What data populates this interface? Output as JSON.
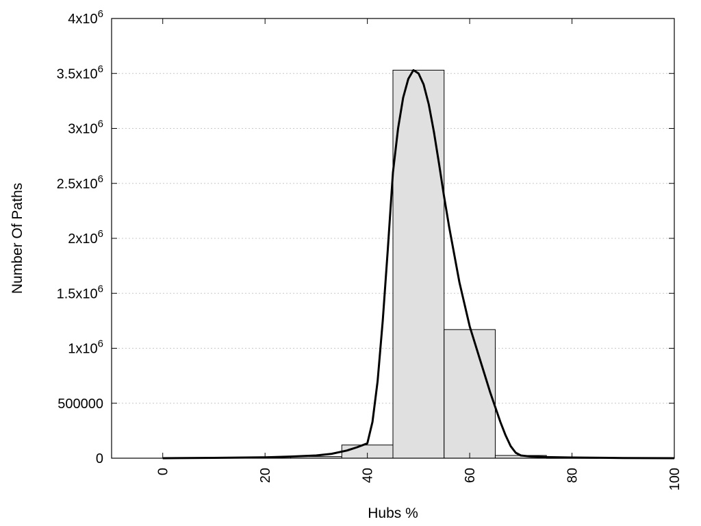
{
  "chart_data": {
    "type": "bar",
    "title": "",
    "xlabel": "Hubs %",
    "ylabel": "Number Of Paths",
    "xlim": [
      -10,
      100
    ],
    "ylim": [
      0,
      4000000
    ],
    "grid": "horizontal dotted",
    "x_ticks": [
      {
        "value": 0,
        "label": "0"
      },
      {
        "value": 20,
        "label": "20"
      },
      {
        "value": 40,
        "label": "40"
      },
      {
        "value": 60,
        "label": "60"
      },
      {
        "value": 80,
        "label": "80"
      },
      {
        "value": 100,
        "label": "100"
      }
    ],
    "y_ticks": [
      {
        "value": 0,
        "base": "0",
        "exp": ""
      },
      {
        "value": 500000,
        "base": "500000",
        "exp": ""
      },
      {
        "value": 1000000,
        "base": "1x10",
        "exp": "6"
      },
      {
        "value": 1500000,
        "base": "1.5x10",
        "exp": "6"
      },
      {
        "value": 2000000,
        "base": "2x10",
        "exp": "6"
      },
      {
        "value": 2500000,
        "base": "2.5x10",
        "exp": "6"
      },
      {
        "value": 3000000,
        "base": "3x10",
        "exp": "6"
      },
      {
        "value": 3500000,
        "base": "3.5x10",
        "exp": "6"
      },
      {
        "value": 4000000,
        "base": "4x10",
        "exp": "6"
      }
    ],
    "bars": [
      {
        "x0": 25,
        "x1": 35,
        "value": 15000
      },
      {
        "x0": 35,
        "x1": 45,
        "value": 120000
      },
      {
        "x0": 45,
        "x1": 55,
        "value": 3530000
      },
      {
        "x0": 55,
        "x1": 65,
        "value": 1170000
      },
      {
        "x0": 65,
        "x1": 75,
        "value": 25000
      },
      {
        "x0": 75,
        "x1": 85,
        "value": 2000
      }
    ],
    "fit_curve": {
      "x": [
        0,
        10,
        20,
        25,
        30,
        33,
        36,
        38,
        40,
        41,
        42,
        43,
        44,
        45,
        46,
        47,
        48,
        49,
        50,
        51,
        52,
        53,
        54,
        55,
        56,
        58,
        60,
        62,
        64,
        66,
        67,
        68,
        69,
        70,
        72,
        75,
        80,
        90,
        100
      ],
      "y": [
        0,
        3000,
        8000,
        15000,
        25000,
        40000,
        70000,
        100000,
        135000,
        330000,
        700000,
        1250000,
        1900000,
        2600000,
        3000000,
        3280000,
        3450000,
        3530000,
        3500000,
        3400000,
        3220000,
        2970000,
        2680000,
        2380000,
        2100000,
        1600000,
        1200000,
        900000,
        600000,
        330000,
        210000,
        110000,
        50000,
        25000,
        15000,
        10000,
        6000,
        2000,
        0
      ]
    },
    "colors": {
      "bar_fill": "#e0e0e0",
      "line": "#000000",
      "grid": "#c8c8c8"
    }
  }
}
